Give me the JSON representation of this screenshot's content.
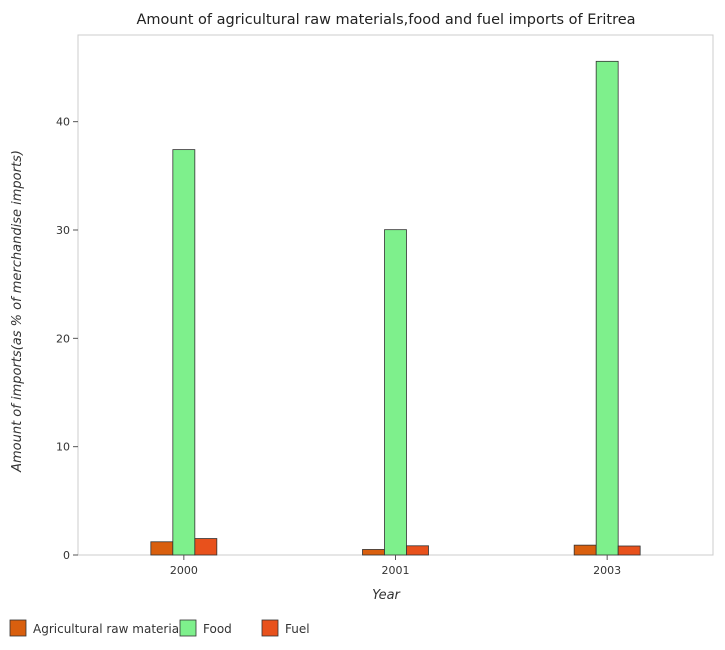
{
  "chart_data": {
    "type": "bar",
    "title": "Amount of agricultural raw materials,food and fuel imports of Eritrea",
    "xlabel": "Year",
    "ylabel": "Amount of imports(as % of merchandise imports)",
    "categories": [
      "2000",
      "2001",
      "2003"
    ],
    "series": [
      {
        "name": "Agricultural raw materials",
        "color": "#d95f0e",
        "values": [
          1.22,
          0.51,
          0.91
        ]
      },
      {
        "name": "Food",
        "color": "#7ef08c",
        "values": [
          37.42,
          30.03,
          45.57
        ]
      },
      {
        "name": "Fuel",
        "color": "#e8511c",
        "values": [
          1.52,
          0.85,
          0.83
        ]
      }
    ],
    "ylim": [
      0,
      48
    ],
    "yticks": [
      0,
      10,
      20,
      30,
      40
    ],
    "grid": false,
    "legend": "bottom-left"
  }
}
